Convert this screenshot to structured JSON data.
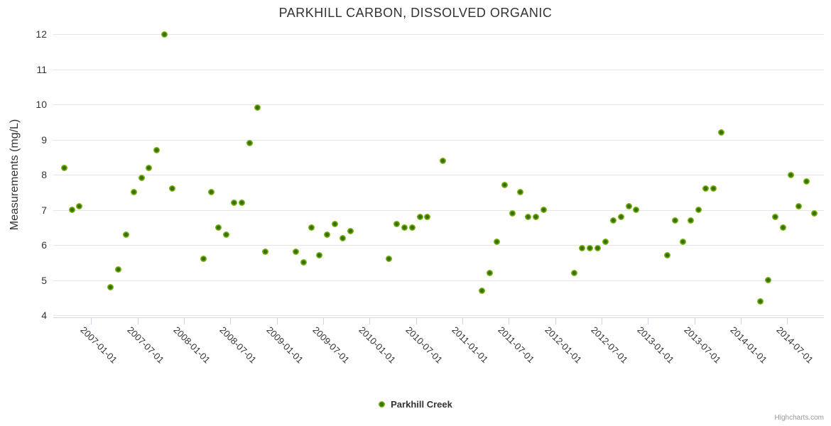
{
  "title": "PARKHILL CARBON, DISSOLVED ORGANIC",
  "y_axis": {
    "title": "Measurements (mg/L)",
    "ticks": [
      4,
      5,
      6,
      7,
      8,
      9,
      10,
      11,
      12
    ]
  },
  "x_axis": {
    "tick_labels": [
      "2007-01-01",
      "2007-07-01",
      "2008-01-01",
      "2008-07-01",
      "2009-01-01",
      "2009-07-01",
      "2010-01-01",
      "2010-07-01",
      "2011-01-01",
      "2011-07-01",
      "2012-01-01",
      "2012-07-01",
      "2013-01-01",
      "2013-07-01",
      "2014-01-01",
      "2014-07-01"
    ]
  },
  "legend": {
    "series_name": "Parkhill Creek"
  },
  "credits": "Highcharts.com",
  "colors": {
    "marker_outer": "#7bb518",
    "marker_core": "#386e02",
    "grid": "#e6e6e6",
    "axis_line": "#ccd6eb",
    "text": "#333333",
    "credits_text": "#999999"
  },
  "chart_data": {
    "type": "scatter",
    "title": "PARKHILL CARBON, DISSOLVED ORGANIC",
    "xlabel": "",
    "ylabel": "Measurements (mg/L)",
    "ylim": [
      4,
      12
    ],
    "grid": true,
    "legend_position": "bottom-center",
    "x_tick_labels": [
      "2007-01-01",
      "2007-07-01",
      "2008-01-01",
      "2008-07-01",
      "2009-01-01",
      "2009-07-01",
      "2010-01-01",
      "2010-07-01",
      "2011-01-01",
      "2011-07-01",
      "2012-01-01",
      "2012-07-01",
      "2013-01-01",
      "2013-07-01",
      "2014-01-01",
      "2014-07-01"
    ],
    "series": [
      {
        "name": "Parkhill Creek",
        "points": [
          [
            "2006-09",
            8.2
          ],
          [
            "2006-10",
            7.0
          ],
          [
            "2006-11",
            7.1
          ],
          [
            "2007-03",
            4.8
          ],
          [
            "2007-04",
            5.3
          ],
          [
            "2007-05",
            6.3
          ],
          [
            "2007-06",
            7.5
          ],
          [
            "2007-07",
            7.9
          ],
          [
            "2007-08",
            8.2
          ],
          [
            "2007-09",
            8.7
          ],
          [
            "2007-10",
            12.0
          ],
          [
            "2007-11",
            7.6
          ],
          [
            "2008-03",
            5.6
          ],
          [
            "2008-04",
            7.5
          ],
          [
            "2008-05",
            6.5
          ],
          [
            "2008-06",
            6.3
          ],
          [
            "2008-07",
            7.2
          ],
          [
            "2008-08",
            7.2
          ],
          [
            "2008-09",
            8.9
          ],
          [
            "2008-10",
            9.9
          ],
          [
            "2008-11",
            5.8
          ],
          [
            "2009-03",
            5.8
          ],
          [
            "2009-04",
            5.5
          ],
          [
            "2009-05",
            6.5
          ],
          [
            "2009-06",
            5.7
          ],
          [
            "2009-07",
            6.3
          ],
          [
            "2009-08",
            6.6
          ],
          [
            "2009-09",
            6.2
          ],
          [
            "2009-10",
            6.4
          ],
          [
            "2010-03",
            5.6
          ],
          [
            "2010-04",
            6.6
          ],
          [
            "2010-05",
            6.5
          ],
          [
            "2010-06",
            6.5
          ],
          [
            "2010-07",
            6.8
          ],
          [
            "2010-08",
            6.8
          ],
          [
            "2010-10",
            8.4
          ],
          [
            "2011-03",
            4.7
          ],
          [
            "2011-04",
            5.2
          ],
          [
            "2011-05",
            6.1
          ],
          [
            "2011-06",
            7.7
          ],
          [
            "2011-07",
            6.9
          ],
          [
            "2011-08",
            7.5
          ],
          [
            "2011-09",
            6.8
          ],
          [
            "2011-10",
            6.8
          ],
          [
            "2011-11",
            7.0
          ],
          [
            "2012-03",
            5.2
          ],
          [
            "2012-04",
            5.9
          ],
          [
            "2012-05",
            5.9
          ],
          [
            "2012-06",
            5.9
          ],
          [
            "2012-07",
            6.1
          ],
          [
            "2012-08",
            6.7
          ],
          [
            "2012-09",
            6.8
          ],
          [
            "2012-10",
            7.1
          ],
          [
            "2012-11",
            7.0
          ],
          [
            "2013-03",
            5.7
          ],
          [
            "2013-04",
            6.7
          ],
          [
            "2013-05",
            6.1
          ],
          [
            "2013-06",
            6.7
          ],
          [
            "2013-07",
            7.0
          ],
          [
            "2013-08",
            7.6
          ],
          [
            "2013-09",
            7.6
          ],
          [
            "2013-10",
            9.2
          ],
          [
            "2014-03",
            4.4
          ],
          [
            "2014-04",
            5.0
          ],
          [
            "2014-05",
            6.8
          ],
          [
            "2014-06",
            6.5
          ],
          [
            "2014-07",
            8.0
          ],
          [
            "2014-08",
            7.1
          ],
          [
            "2014-09",
            7.8
          ],
          [
            "2014-10",
            6.9
          ]
        ]
      }
    ]
  }
}
